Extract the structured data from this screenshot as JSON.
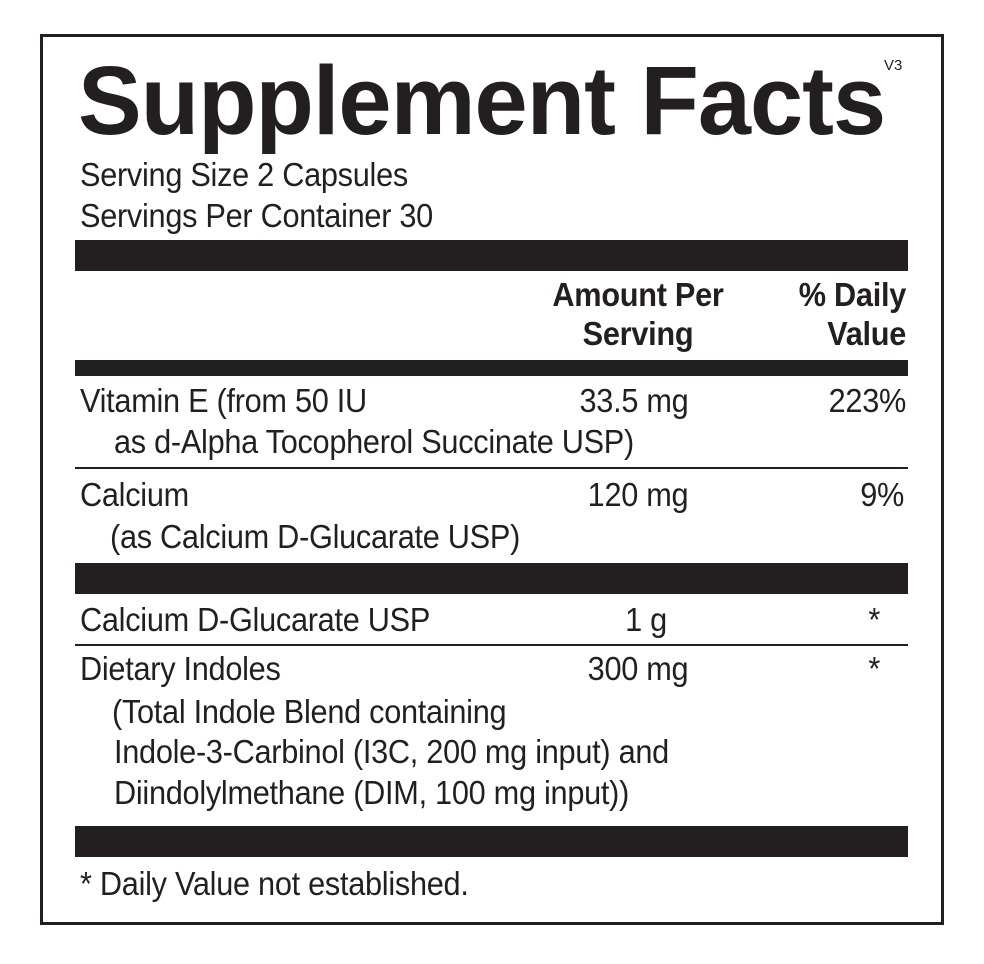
{
  "header": {
    "title": "Supplement Facts",
    "version": "V3"
  },
  "serving": {
    "size": "Serving Size  2 Capsules",
    "per_container": "Servings Per Container  30"
  },
  "columns": {
    "amount_line1": "Amount Per",
    "amount_line2": "Serving",
    "dv_line1": "% Daily",
    "dv_line2": "Value"
  },
  "rows": [
    {
      "name": "Vitamin E (from 50 IU",
      "sub": [
        "as d-Alpha Tocopherol Succinate USP)"
      ],
      "amount": "33.5 mg",
      "dv": "223%"
    },
    {
      "name": "Calcium",
      "sub": [
        "(as Calcium D-Glucarate USP)"
      ],
      "amount": "120 mg",
      "dv": "9%"
    },
    {
      "name": "Calcium D-Glucarate USP",
      "sub": [],
      "amount": "1 g",
      "dv": "*"
    },
    {
      "name": "Dietary Indoles",
      "sub": [
        "(Total Indole Blend containing",
        "Indole-3-Carbinol (I3C, 200 mg input) and",
        "Diindolylmethane (DIM, 100 mg input))"
      ],
      "amount": "300 mg",
      "dv": "*"
    }
  ],
  "footnote": "* Daily Value not established."
}
